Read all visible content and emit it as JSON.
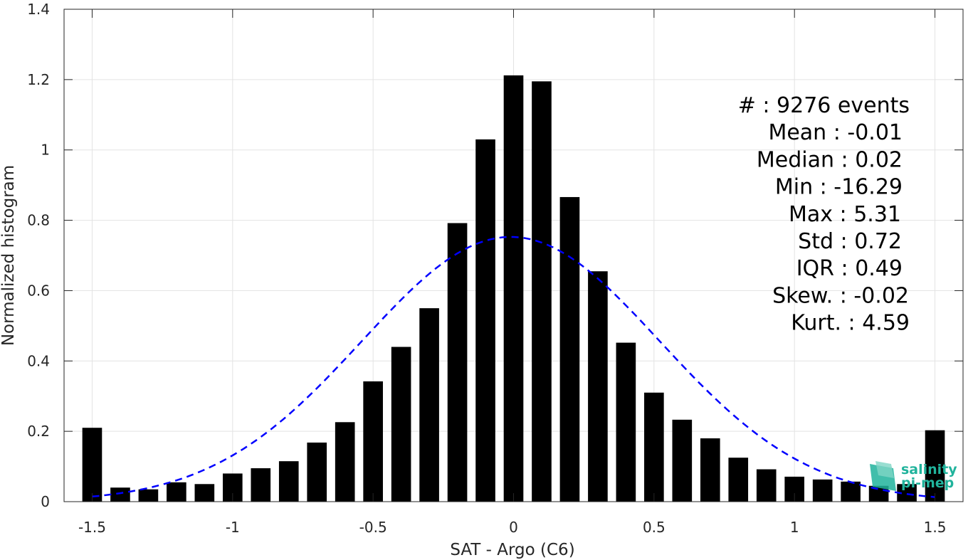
{
  "chart_data": {
    "type": "bar",
    "xlabel": "SAT - Argo (C6)",
    "ylabel": "Normalized histogram",
    "xlim": [
      -1.6,
      1.6
    ],
    "ylim": [
      0,
      1.4
    ],
    "xticks": [
      -1.5,
      -1,
      -0.5,
      0,
      0.5,
      1,
      1.5
    ],
    "xtick_labels": [
      "-1.5",
      "-1",
      "-0.5",
      "0",
      "0.5",
      "1",
      "1.5"
    ],
    "yticks": [
      0,
      0.2,
      0.4,
      0.6,
      0.8,
      1,
      1.2,
      1.4
    ],
    "ytick_labels": [
      "0",
      "0.2",
      "0.4",
      "0.6",
      "0.8",
      "1",
      "1.2",
      "1.4"
    ],
    "grid": true,
    "bar_color": "#000000",
    "bins": [
      {
        "x": -1.5,
        "value": 0.21
      },
      {
        "x": -1.4,
        "value": 0.04
      },
      {
        "x": -1.3,
        "value": 0.035
      },
      {
        "x": -1.2,
        "value": 0.055
      },
      {
        "x": -1.1,
        "value": 0.05
      },
      {
        "x": -1.0,
        "value": 0.08
      },
      {
        "x": -0.9,
        "value": 0.095
      },
      {
        "x": -0.8,
        "value": 0.115
      },
      {
        "x": -0.7,
        "value": 0.168
      },
      {
        "x": -0.6,
        "value": 0.226
      },
      {
        "x": -0.5,
        "value": 0.342
      },
      {
        "x": -0.4,
        "value": 0.44
      },
      {
        "x": -0.3,
        "value": 0.55
      },
      {
        "x": -0.2,
        "value": 0.792
      },
      {
        "x": -0.1,
        "value": 1.03
      },
      {
        "x": 0.0,
        "value": 1.212
      },
      {
        "x": 0.1,
        "value": 1.195
      },
      {
        "x": 0.2,
        "value": 0.866
      },
      {
        "x": 0.3,
        "value": 0.655
      },
      {
        "x": 0.4,
        "value": 0.452
      },
      {
        "x": 0.5,
        "value": 0.31
      },
      {
        "x": 0.6,
        "value": 0.233
      },
      {
        "x": 0.7,
        "value": 0.18
      },
      {
        "x": 0.8,
        "value": 0.125
      },
      {
        "x": 0.9,
        "value": 0.092
      },
      {
        "x": 1.0,
        "value": 0.071
      },
      {
        "x": 1.1,
        "value": 0.063
      },
      {
        "x": 1.2,
        "value": 0.057
      },
      {
        "x": 1.3,
        "value": 0.045
      },
      {
        "x": 1.4,
        "value": 0.05
      },
      {
        "x": 1.5,
        "value": 0.203
      }
    ],
    "fit_curve": {
      "style": "dashed",
      "color": "#0000ff",
      "mean": -0.01,
      "std": 0.53,
      "x_range": [
        -1.5,
        1.5
      ]
    },
    "annotation_lines": [
      "#  : 9276 events",
      "Mean : -0.01",
      "Median : 0.02",
      "Min : -16.29",
      "Max : 5.31",
      "Std : 0.72",
      "IQR : 0.49",
      "Skew. : -0.02",
      "Kurt. : 4.59"
    ]
  },
  "logo": {
    "line1": "salinity",
    "line2": "pi-mep",
    "color": "#20b39c"
  }
}
